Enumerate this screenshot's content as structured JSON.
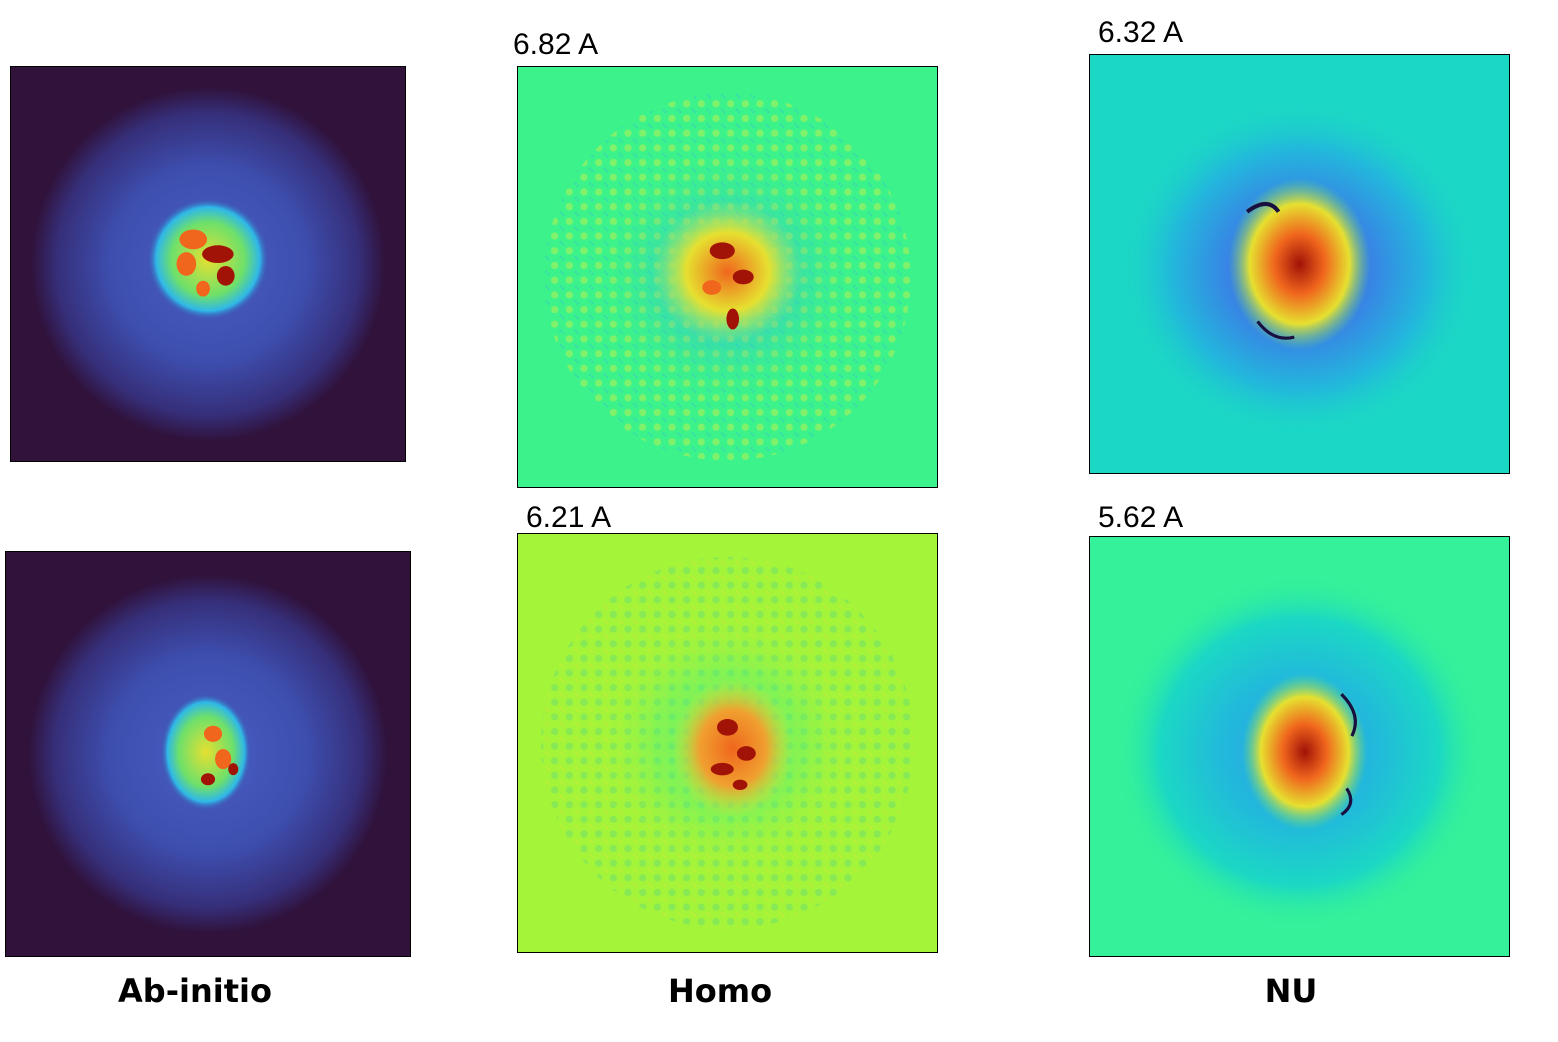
{
  "columns": {
    "abinitio": "Ab-initio",
    "homo": "Homo",
    "nu": "NU"
  },
  "resolutions": {
    "homo_top": "6.82 A",
    "nu_top": "6.32 A",
    "homo_bottom": "6.21 A",
    "nu_bottom": "5.62 A"
  },
  "colors": {
    "abinitio_background": "#30123b",
    "abinitio_halo": "#3b4aa8",
    "homo_top_background": "#3cf28a",
    "homo_bottom_background": "#a4f43a",
    "nu_top_background": "#1bd8c4",
    "nu_bottom_background": "#35f199",
    "core_hot": "#a11207",
    "core_warm": "#f0661d",
    "core_mid": "#e6e030"
  }
}
